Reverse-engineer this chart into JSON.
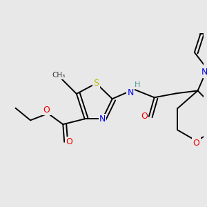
{
  "bg_color": "#e8e8e8",
  "bond_color": "#000000",
  "bond_lw": 1.4,
  "dbo": 0.01,
  "atom_colors": {
    "S": "#b8b800",
    "N": "#0000ee",
    "O": "#ee0000",
    "H": "#4a9999",
    "C": "#000000"
  },
  "afs": 8.5,
  "fig_w": 3.0,
  "fig_h": 3.0,
  "dpi": 100
}
